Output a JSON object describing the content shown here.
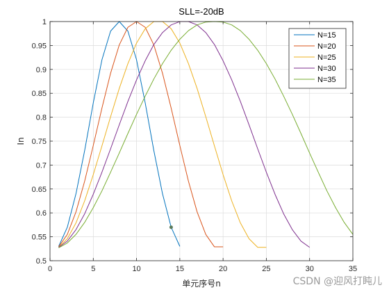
{
  "chart_data": {
    "type": "line",
    "title": "SLL=-20dB",
    "xlabel": "单元序号n",
    "ylabel": "In",
    "xlim": [
      0,
      35
    ],
    "ylim": [
      0.5,
      1
    ],
    "xticks": [
      "0",
      "5",
      "10",
      "15",
      "20",
      "25",
      "30",
      "35"
    ],
    "yticks": [
      "0.5",
      "0.55",
      "0.6",
      "0.65",
      "0.7",
      "0.75",
      "0.8",
      "0.85",
      "0.9",
      "0.95",
      "1"
    ],
    "grid": true,
    "legend_position": "top-right",
    "series": [
      {
        "name": "N=15",
        "color": "#0072BD",
        "x": [
          1,
          2,
          3,
          4,
          5,
          6,
          7,
          8,
          9,
          10,
          11,
          12,
          13,
          14,
          15
        ],
        "y": [
          0.53,
          0.57,
          0.64,
          0.73,
          0.83,
          0.92,
          0.98,
          1.0,
          0.98,
          0.92,
          0.83,
          0.73,
          0.64,
          0.57,
          0.53
        ]
      },
      {
        "name": "N=20",
        "color": "#D95319",
        "x": [
          1,
          2,
          3,
          4,
          5,
          6,
          7,
          8,
          9,
          10,
          11,
          12,
          13,
          14,
          15,
          16,
          17,
          18,
          19,
          20
        ],
        "y": [
          0.529,
          0.555,
          0.602,
          0.666,
          0.741,
          0.819,
          0.892,
          0.951,
          0.988,
          1.0,
          0.988,
          0.951,
          0.892,
          0.819,
          0.741,
          0.666,
          0.602,
          0.555,
          0.529,
          0.529
        ]
      },
      {
        "name": "N=25",
        "color": "#EDB120",
        "x": [
          1,
          2,
          3,
          4,
          5,
          6,
          7,
          8,
          9,
          10,
          11,
          12,
          13,
          14,
          15,
          16,
          17,
          18,
          19,
          20,
          21,
          22,
          23,
          24,
          25
        ],
        "y": [
          0.528,
          0.546,
          0.579,
          0.625,
          0.68,
          0.74,
          0.801,
          0.86,
          0.912,
          0.955,
          0.985,
          1.0,
          1.0,
          0.985,
          0.955,
          0.912,
          0.86,
          0.801,
          0.74,
          0.68,
          0.625,
          0.579,
          0.546,
          0.528,
          0.528
        ]
      },
      {
        "name": "N=30",
        "color": "#7E2F8E",
        "x": [
          1,
          2,
          3,
          4,
          5,
          6,
          7,
          8,
          9,
          10,
          11,
          12,
          13,
          14,
          15,
          16,
          17,
          18,
          19,
          20,
          21,
          22,
          23,
          24,
          25,
          26,
          27,
          28,
          29,
          30
        ],
        "y": [
          0.528,
          0.541,
          0.565,
          0.598,
          0.639,
          0.685,
          0.734,
          0.784,
          0.833,
          0.878,
          0.918,
          0.952,
          0.977,
          0.993,
          1.0,
          1.0,
          0.993,
          0.977,
          0.952,
          0.918,
          0.878,
          0.833,
          0.784,
          0.734,
          0.685,
          0.639,
          0.598,
          0.565,
          0.541,
          0.528
        ]
      },
      {
        "name": "N=35",
        "color": "#77AC30",
        "x": [
          1,
          2,
          3,
          4,
          5,
          6,
          7,
          8,
          9,
          10,
          11,
          12,
          13,
          14,
          15,
          16,
          17,
          18,
          19,
          20,
          21,
          22,
          23,
          24,
          25,
          26,
          27,
          28,
          29,
          30,
          31,
          32,
          33,
          34,
          35
        ],
        "y": [
          0.527,
          0.537,
          0.555,
          0.58,
          0.611,
          0.646,
          0.685,
          0.725,
          0.766,
          0.806,
          0.844,
          0.88,
          0.912,
          0.94,
          0.963,
          0.981,
          0.993,
          0.999,
          1.0,
          0.999,
          0.993,
          0.981,
          0.963,
          0.94,
          0.912,
          0.88,
          0.844,
          0.806,
          0.766,
          0.725,
          0.685,
          0.646,
          0.611,
          0.58,
          0.555
        ]
      }
    ],
    "annotations": [
      {
        "type": "marker",
        "x": 14,
        "y": 0.57,
        "color": "#5a7a5a"
      }
    ]
  },
  "watermark": "CSDN @迎风打盹儿"
}
